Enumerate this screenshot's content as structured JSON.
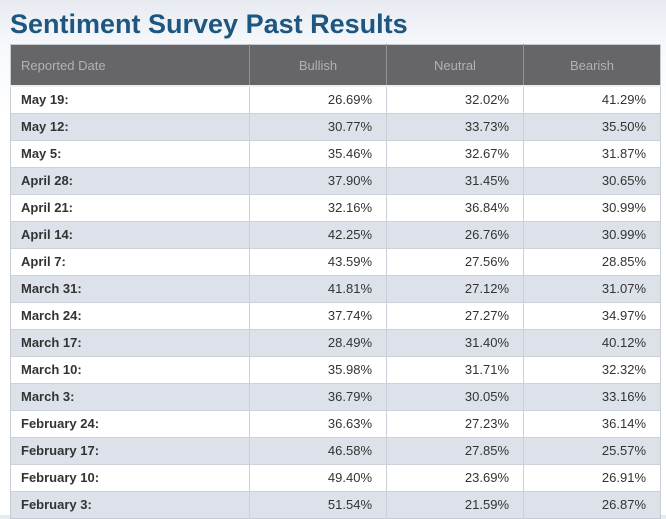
{
  "page": {
    "title": "Sentiment Survey Past Results"
  },
  "colors": {
    "title_text": "#1d577f",
    "header_bg": "#666668",
    "header_text": "#b2b2b2",
    "row_bg": "#ffffff",
    "row_alt_bg": "#dce1ea",
    "border": "#ccd0d8",
    "cell_text": "#333333"
  },
  "table": {
    "columns": [
      "Reported Date",
      "Bullish",
      "Neutral",
      "Bearish"
    ],
    "rows": [
      {
        "date": "May 19:",
        "bullish": "26.69%",
        "neutral": "32.02%",
        "bearish": "41.29%"
      },
      {
        "date": "May 12:",
        "bullish": "30.77%",
        "neutral": "33.73%",
        "bearish": "35.50%"
      },
      {
        "date": "May 5:",
        "bullish": "35.46%",
        "neutral": "32.67%",
        "bearish": "31.87%"
      },
      {
        "date": "April 28:",
        "bullish": "37.90%",
        "neutral": "31.45%",
        "bearish": "30.65%"
      },
      {
        "date": "April 21:",
        "bullish": "32.16%",
        "neutral": "36.84%",
        "bearish": "30.99%"
      },
      {
        "date": "April 14:",
        "bullish": "42.25%",
        "neutral": "26.76%",
        "bearish": "30.99%"
      },
      {
        "date": "April 7:",
        "bullish": "43.59%",
        "neutral": "27.56%",
        "bearish": "28.85%"
      },
      {
        "date": "March 31:",
        "bullish": "41.81%",
        "neutral": "27.12%",
        "bearish": "31.07%"
      },
      {
        "date": "March 24:",
        "bullish": "37.74%",
        "neutral": "27.27%",
        "bearish": "34.97%"
      },
      {
        "date": "March 17:",
        "bullish": "28.49%",
        "neutral": "31.40%",
        "bearish": "40.12%"
      },
      {
        "date": "March 10:",
        "bullish": "35.98%",
        "neutral": "31.71%",
        "bearish": "32.32%"
      },
      {
        "date": "March 3:",
        "bullish": "36.79%",
        "neutral": "30.05%",
        "bearish": "33.16%"
      },
      {
        "date": "February 24:",
        "bullish": "36.63%",
        "neutral": "27.23%",
        "bearish": "36.14%"
      },
      {
        "date": "February 17:",
        "bullish": "46.58%",
        "neutral": "27.85%",
        "bearish": "25.57%"
      },
      {
        "date": "February 10:",
        "bullish": "49.40%",
        "neutral": "23.69%",
        "bearish": "26.91%"
      },
      {
        "date": "February 3:",
        "bullish": "51.54%",
        "neutral": "21.59%",
        "bearish": "26.87%"
      }
    ]
  }
}
